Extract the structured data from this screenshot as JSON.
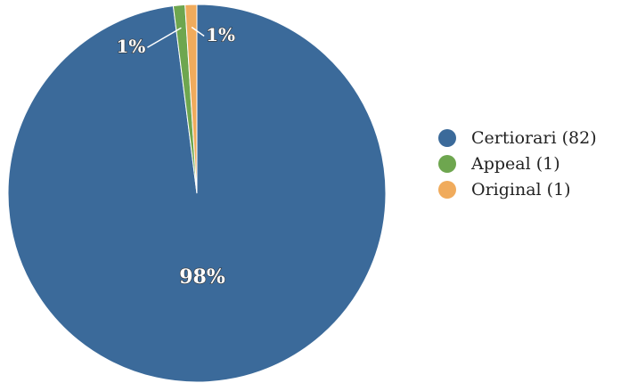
{
  "chart_data": {
    "type": "pie",
    "title": "",
    "slices": [
      {
        "label": "Certiorari",
        "count": 82,
        "value": 98,
        "value_label": "98%",
        "color": "#3b6a9a"
      },
      {
        "label": "Appeal",
        "count": 1,
        "value": 1,
        "value_label": "1%",
        "color": "#6ea64f"
      },
      {
        "label": "Original",
        "count": 1,
        "value": 1,
        "value_label": "1%",
        "color": "#f0ab5c"
      }
    ],
    "legend_position": "right",
    "legend_entries": [
      "Certiorari (82)",
      "Appeal (1)",
      "Original (1)"
    ]
  }
}
